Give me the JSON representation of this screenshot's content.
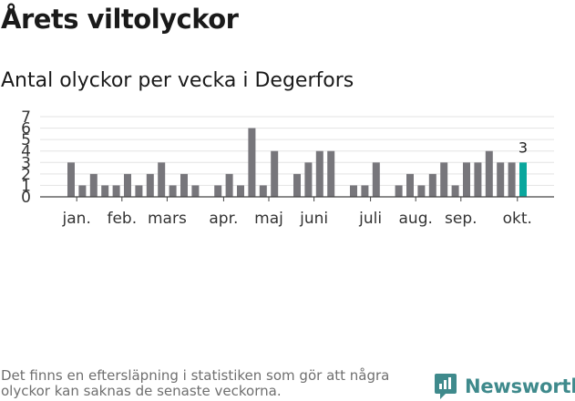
{
  "title": "Årets viltolyckor",
  "subtitle": "Antal olyckor per vecka i Degerfors",
  "footnote": "Det finns en eftersläpning i statistiken som gör att några olyckor kan saknas de senaste veckorna.",
  "brand": {
    "name": "Newsworthy",
    "icon": "newsworthy-logo-icon",
    "color": "#3f8a8c"
  },
  "chart_data": {
    "type": "bar",
    "title": "Antal olyckor per vecka i Degerfors",
    "xlabel": "",
    "ylabel": "",
    "ylim": [
      0,
      7
    ],
    "y_ticks": [
      0,
      1,
      2,
      3,
      4,
      5,
      6,
      7
    ],
    "grid": true,
    "x_unit": "week",
    "weeks": [
      1,
      2,
      3,
      4,
      5,
      6,
      7,
      8,
      9,
      10,
      11,
      12,
      13,
      14,
      15,
      16,
      17,
      18,
      19,
      20,
      21,
      22,
      23,
      24,
      25,
      26,
      27,
      28,
      29,
      30,
      31,
      32,
      33,
      34,
      35,
      36,
      37,
      38,
      39,
      40,
      41
    ],
    "values": [
      3,
      1,
      2,
      1,
      1,
      2,
      1,
      2,
      3,
      1,
      2,
      1,
      0,
      1,
      2,
      1,
      6,
      1,
      4,
      0,
      2,
      3,
      4,
      4,
      0,
      1,
      1,
      3,
      0,
      1,
      2,
      1,
      2,
      3,
      1,
      3,
      3,
      4,
      3,
      3,
      3
    ],
    "month_labels": [
      {
        "label": "jan.",
        "week": 1.5
      },
      {
        "label": "feb.",
        "week": 5.5
      },
      {
        "label": "mars",
        "week": 9.5
      },
      {
        "label": "apr.",
        "week": 14.5
      },
      {
        "label": "maj",
        "week": 18.5
      },
      {
        "label": "juni",
        "week": 22.5
      },
      {
        "label": "juli",
        "week": 27.5
      },
      {
        "label": "aug.",
        "week": 31.5
      },
      {
        "label": "sep.",
        "week": 35.5
      },
      {
        "label": "okt.",
        "week": 40.5
      }
    ],
    "highlight": {
      "week": 41,
      "label": "3"
    },
    "colors": {
      "bar": "#77767b",
      "highlight": "#0aa79d",
      "grid": "#e3e3e3",
      "axis": "#444444"
    }
  }
}
